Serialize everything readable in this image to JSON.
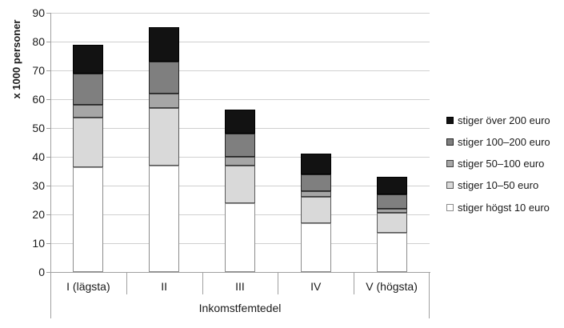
{
  "chart_data": {
    "type": "bar",
    "stacked": true,
    "title": "",
    "xlabel": "Inkomstfemtedel",
    "ylabel": "x 1000 personer",
    "ylim": [
      0,
      90
    ],
    "ytick_step": 10,
    "grid": true,
    "legend_position": "right",
    "categories": [
      "I (lägsta)",
      "II",
      "III",
      "IV",
      "V (högsta)"
    ],
    "series": [
      {
        "name": "stiger högst 10 euro",
        "fill": "#ffffff",
        "border": "#8c8c8c",
        "values": [
          36.5,
          37,
          24,
          17,
          13.5
        ]
      },
      {
        "name": "stiger 10–50 euro",
        "fill": "#d9d9d9",
        "border": "#595959",
        "values": [
          17,
          20,
          13,
          9,
          7
        ]
      },
      {
        "name": "stiger 50–100 euro",
        "fill": "#a6a6a6",
        "border": "#404040",
        "values": [
          4.5,
          5,
          3,
          2,
          1.5
        ]
      },
      {
        "name": "stiger 100–200 euro",
        "fill": "#7f7f7f",
        "border": "#262626",
        "values": [
          11,
          11,
          8,
          6,
          5
        ]
      },
      {
        "name": "stiger över 200 euro",
        "fill": "#121212",
        "border": "#000000",
        "values": [
          10,
          12,
          8.5,
          7,
          6
        ]
      }
    ],
    "stack_totals": [
      79,
      85,
      56.5,
      41,
      33
    ]
  },
  "colors": {
    "gridline": "#d0d0d0",
    "axis": "#a0a0a0",
    "text": "#1a1a1a",
    "background": "#ffffff"
  }
}
